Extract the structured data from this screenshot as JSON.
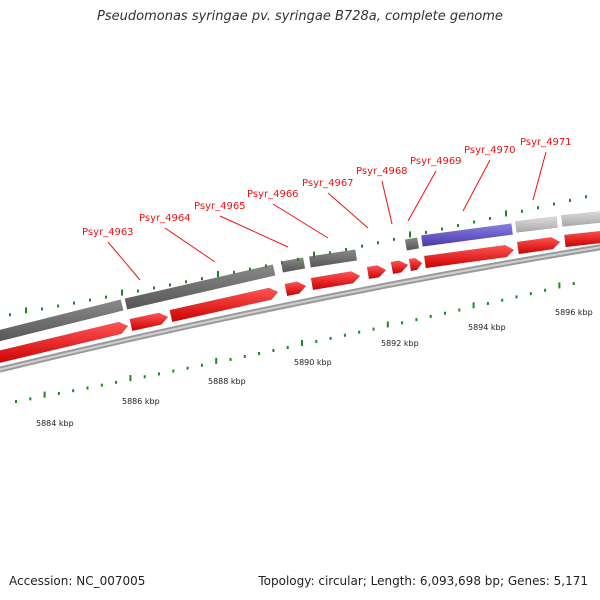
{
  "title": "Pseudomonas syringae pv. syringae B728a, complete genome",
  "footer": {
    "accession": "Accession: NC_007005",
    "summary": "Topology: circular; Length: 6,093,698 bp; Genes: 5,171"
  },
  "colors": {
    "cds_red": "#ee1111",
    "gene_dark_gray": "#666666",
    "gene_light_gray": "#bbbbbb",
    "gene_purple": "#6655cc",
    "label": "#ee1111",
    "tick": "#1a8a1a",
    "backbone": "#888888"
  },
  "gene_labels": [
    {
      "id": "lbl-4963",
      "text": "Psyr_4963"
    },
    {
      "id": "lbl-4964",
      "text": "Psyr_4964"
    },
    {
      "id": "lbl-4965",
      "text": "Psyr_4965"
    },
    {
      "id": "lbl-4966",
      "text": "Psyr_4966"
    },
    {
      "id": "lbl-4967",
      "text": "Psyr_4967"
    },
    {
      "id": "lbl-4968",
      "text": "Psyr_4968"
    },
    {
      "id": "lbl-4969",
      "text": "Psyr_4969"
    },
    {
      "id": "lbl-4970",
      "text": "Psyr_4970"
    },
    {
      "id": "lbl-4971",
      "text": "Psyr_4971"
    }
  ],
  "scale_labels": [
    "5884 kbp",
    "5886 kbp",
    "5888 kbp",
    "5890 kbp",
    "5892 kbp",
    "5894 kbp",
    "5896 kbp"
  ]
}
